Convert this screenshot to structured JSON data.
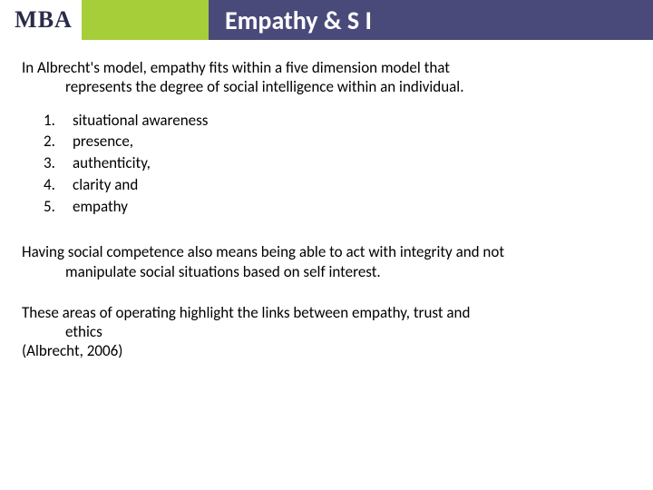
{
  "header": {
    "bar_color": "#4a4a7a",
    "logo_text": "MBA",
    "logo_text_color": "#2a2a4a",
    "logo_accent_color": "#a6ce39",
    "title": "Empathy & S I",
    "title_color": "#ffffff",
    "title_fontsize": 28,
    "title_fontweight": 700
  },
  "body": {
    "text_color": "#000000",
    "fontsize": 17,
    "intro_line1": "In Albrecht's model, empathy fits within a five dimension model that",
    "intro_line2": "represents the degree of social intelligence within an individual.",
    "list": [
      {
        "num": "1.",
        "label": "situational awareness"
      },
      {
        "num": "2.",
        "label": "presence,"
      },
      {
        "num": "3.",
        "label": "authenticity,"
      },
      {
        "num": "4.",
        "label": "clarity and"
      },
      {
        "num": "5.",
        "label": "empathy"
      }
    ],
    "para_line1": "Having social competence also means being able to act with integrity and not",
    "para_line2": "manipulate social situations based on self interest.",
    "final_line1": "These areas of operating highlight the links between empathy, trust and",
    "final_line2": "ethics",
    "final_line3": "(Albrecht, 2006)"
  }
}
